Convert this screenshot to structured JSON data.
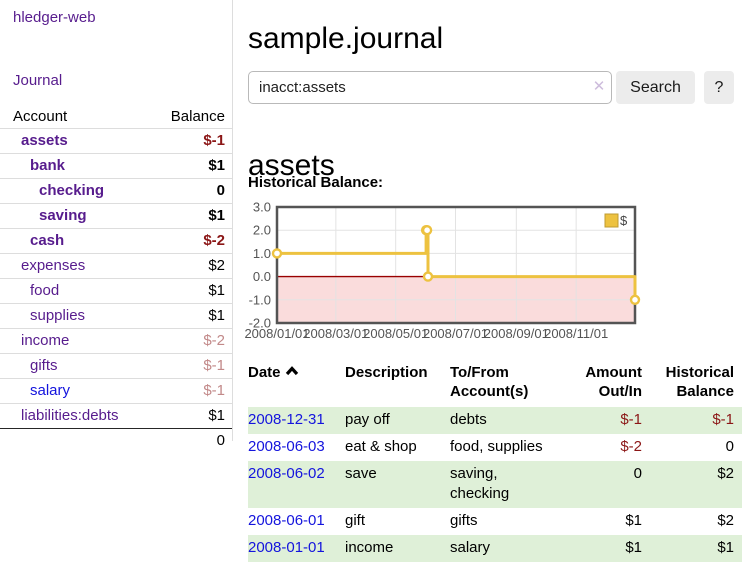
{
  "sidebar": {
    "brand": "hledger-web",
    "nav": {
      "journal_label": "Journal"
    },
    "table": {
      "account_header": "Account",
      "balance_header": "Balance",
      "accounts": [
        {
          "name": "assets",
          "balance": "$-1",
          "level": 1,
          "in_query": true
        },
        {
          "name": "bank",
          "balance": "$1",
          "level": 2,
          "in_query": true
        },
        {
          "name": "checking",
          "balance": "0",
          "level": 3,
          "in_query": true
        },
        {
          "name": "saving",
          "balance": "$1",
          "level": 3,
          "in_query": true
        },
        {
          "name": "cash",
          "balance": "$-2",
          "level": 2,
          "in_query": true
        },
        {
          "name": "expenses",
          "balance": "$2",
          "level": 1,
          "in_query": false
        },
        {
          "name": "food",
          "balance": "$1",
          "level": 2,
          "in_query": false
        },
        {
          "name": "supplies",
          "balance": "$1",
          "level": 2,
          "in_query": false
        },
        {
          "name": "income",
          "balance": "$-2",
          "level": 1,
          "in_query": false
        },
        {
          "name": "gifts",
          "balance": "$-1",
          "level": 2,
          "in_query": false
        },
        {
          "name": "salary",
          "balance": "$-1",
          "level": 2,
          "in_query": false,
          "unvisited": true
        },
        {
          "name": "liabilities:debts",
          "balance": "$1",
          "level": 1,
          "in_query": false
        }
      ],
      "total": "0"
    }
  },
  "header": {
    "title": "sample.journal"
  },
  "search": {
    "value": "inacct:assets",
    "clear_icon": "✕",
    "button_label": "Search",
    "help_label": "?"
  },
  "account_page": {
    "heading": "assets",
    "chart_label": "Historical Balance:"
  },
  "chart_data": {
    "type": "line",
    "step": true,
    "title": "Historical Balance",
    "series": [
      {
        "name": "$",
        "color": "#edc240",
        "points": [
          [
            "2008-01-01",
            1
          ],
          [
            "2008-06-01",
            2
          ],
          [
            "2008-06-02",
            2
          ],
          [
            "2008-06-03",
            0
          ],
          [
            "2008-12-31",
            -1
          ]
        ]
      }
    ],
    "x_range": [
      "2008-01-01",
      "2008-12-31"
    ],
    "x_ticks": [
      {
        "date": "2008-01-01",
        "label": "2008/01/01"
      },
      {
        "date": "2008-03-01",
        "label": "2008/03/01"
      },
      {
        "date": "2008-05-01",
        "label": "2008/05/01"
      },
      {
        "date": "2008-07-01",
        "label": "2008/07/01"
      },
      {
        "date": "2008-09-01",
        "label": "2008/09/01"
      },
      {
        "date": "2008-11-01",
        "label": "2008/11/01"
      }
    ],
    "y_ticks": [
      {
        "value": 3,
        "label": "3.0"
      },
      {
        "value": 2,
        "label": "2.0"
      },
      {
        "value": 1,
        "label": "1.0"
      },
      {
        "value": 0,
        "label": "0.0"
      },
      {
        "value": -1,
        "label": "-1.0"
      },
      {
        "value": -2,
        "label": "-2.0"
      }
    ],
    "ylim": [
      -2,
      3
    ],
    "grid": true,
    "grid_color": "#e3e3e3",
    "border_color": "#545454",
    "axis_label_color": "#545454",
    "negative_region": {
      "from": 0,
      "to": -2,
      "color": "#fadcdc",
      "line_color": "#990000"
    },
    "legend": {
      "label": "$",
      "position": "top-right"
    }
  },
  "register": {
    "columns": {
      "date": "Date",
      "description": "Description",
      "accounts": "To/From Account(s)",
      "amount": "Amount Out/In",
      "balance": "Historical Balance"
    },
    "sort_direction": "ascending",
    "rows": [
      {
        "date": "2008-12-31",
        "description": "pay off",
        "accounts": "debts",
        "amount": "$-1",
        "balance": "$-1"
      },
      {
        "date": "2008-06-03",
        "description": "eat & shop",
        "accounts": "food, supplies",
        "amount": "$-2",
        "balance": "0"
      },
      {
        "date": "2008-06-02",
        "description": "save",
        "accounts": "saving, checking",
        "amount": "0",
        "balance": "$2"
      },
      {
        "date": "2008-06-01",
        "description": "gift",
        "accounts": "gifts",
        "amount": "$1",
        "balance": "$2"
      },
      {
        "date": "2008-01-01",
        "description": "income",
        "accounts": "salary",
        "amount": "$1",
        "balance": "$1"
      }
    ]
  },
  "colors": {
    "brand_purple": "#571c8d",
    "link_blue": "#1414dd",
    "negative": "#8b1616",
    "negative_muted": "#c28989",
    "row_green": "#dff0d8",
    "series_gold": "#edc240"
  }
}
